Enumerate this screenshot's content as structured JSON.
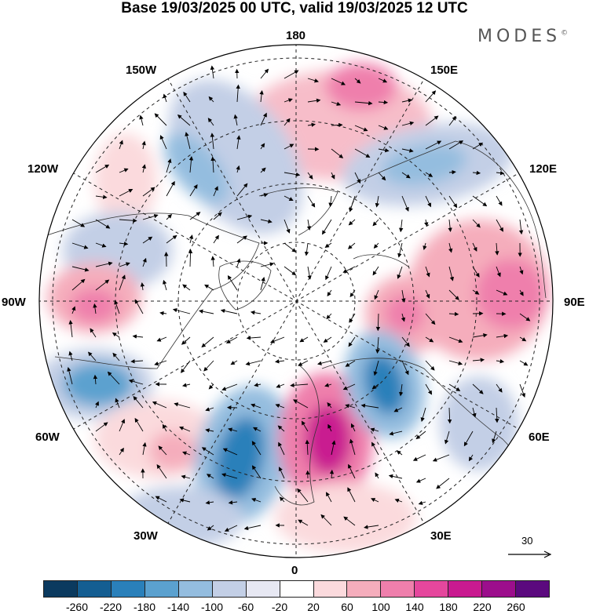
{
  "header": {
    "title": "Base 19/03/2025 00 UTC, valid 19/03/2025 12 UTC",
    "brand": "MODES",
    "brand_mark": "©"
  },
  "map": {
    "projection": "north polar stereographic",
    "longitude_labels": {
      "top": "180",
      "bottom": "0",
      "left": "90W",
      "right": "90E",
      "upper_left_1": "150W",
      "upper_left_2": "120W",
      "upper_right_1": "150E",
      "upper_right_2": "120E",
      "lower_left_1": "60W",
      "lower_left_2": "30W",
      "lower_right_1": "60E",
      "lower_right_2": "30E"
    },
    "field": "anomaly (shaded) with wind vectors (arrows)",
    "positive_color": "#e8489b",
    "negative_color": "#2a6fa8"
  },
  "vector_scale": {
    "label": "30"
  },
  "colorbar": {
    "colors": [
      "#0b3a5f",
      "#145e92",
      "#2a80ba",
      "#5ba1cf",
      "#94bddf",
      "#c3cfe6",
      "#e7e8f3",
      "#ffffff",
      "#fbdadd",
      "#f5adbc",
      "#ef7fac",
      "#e5479d",
      "#c91a90",
      "#9c0e8c",
      "#5b0a7e"
    ],
    "ticks": [
      "-260",
      "-220",
      "-180",
      "-140",
      "-100",
      "-60",
      "-20",
      "20",
      "60",
      "100",
      "140",
      "180",
      "220",
      "260"
    ]
  }
}
